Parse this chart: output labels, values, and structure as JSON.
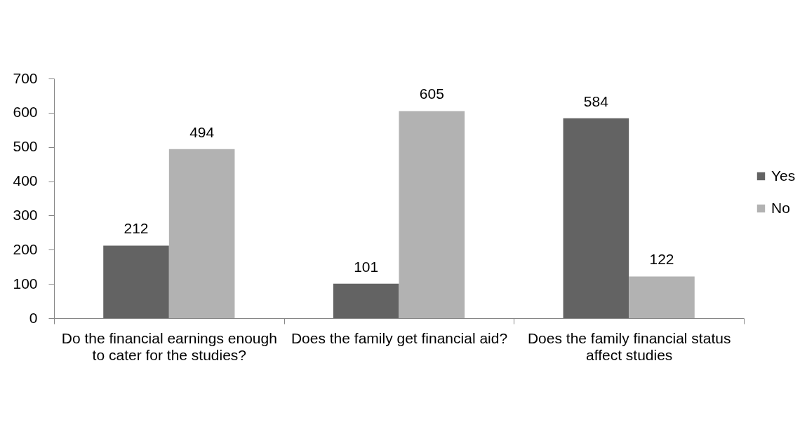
{
  "chart_data": {
    "type": "bar",
    "categories": [
      "Do the financial earnings enough to cater for the studies?",
      "Does the family get financial aid?",
      "Does the family financial status affect studies"
    ],
    "series": [
      {
        "name": "Yes",
        "color": "#636363",
        "values": [
          212,
          101,
          584
        ]
      },
      {
        "name": "No",
        "color": "#b2b2b2",
        "values": [
          494,
          605,
          122
        ]
      }
    ],
    "ylim": [
      0,
      700
    ],
    "yticks": [
      0,
      100,
      200,
      300,
      400,
      500,
      600,
      700
    ],
    "data_labels": true,
    "legend": "right"
  }
}
